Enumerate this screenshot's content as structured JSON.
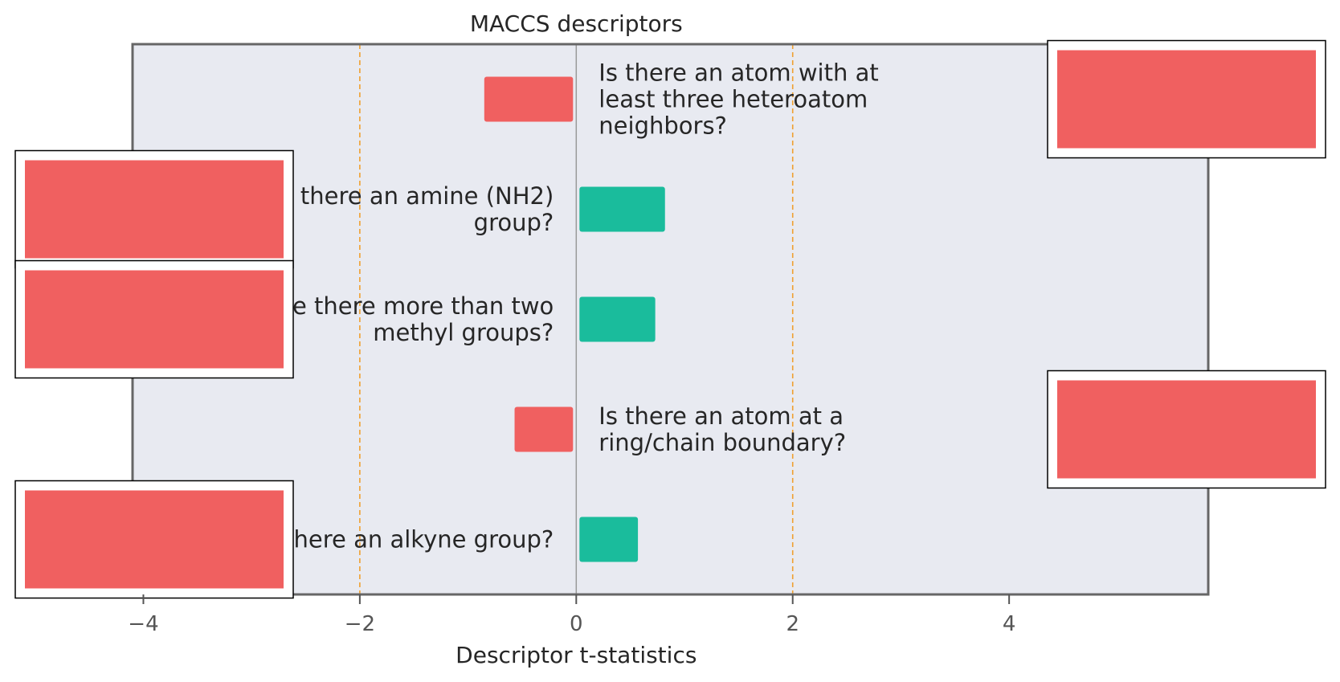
{
  "chart_data": {
    "type": "bar",
    "orientation": "horizontal",
    "title": "MACCS descriptors",
    "xlabel": "Descriptor t-statistics",
    "ylabel": "",
    "xlim": [
      -4.1,
      5.84
    ],
    "xticks": [
      -4,
      -2,
      0,
      2,
      4
    ],
    "xtick_labels": [
      "−4",
      "−2",
      "0",
      "2",
      "4"
    ],
    "threshold_lines": [
      -2,
      2
    ],
    "grid": false,
    "colors": {
      "positive": "#1abc9c",
      "negative": "#f06060",
      "threshold": "#f0a030",
      "zero_line": "#999999",
      "plot_bg": "#e8eaf1",
      "image_placeholder": "#f06060"
    },
    "bars": [
      {
        "label_lines": [
          "Is there an atom with at",
          "least three heteroatom",
          "neighbors?"
        ],
        "value": -0.85
      },
      {
        "label_lines": [
          "Is there an amine (NH2)",
          "group?"
        ],
        "value": 0.82
      },
      {
        "label_lines": [
          "Are there more than two",
          "methyl groups?"
        ],
        "value": 0.73
      },
      {
        "label_lines": [
          "Is there an atom at a",
          "ring/chain boundary?"
        ],
        "value": -0.57
      },
      {
        "label_lines": [
          "Is there an alkyne group?"
        ],
        "value": 0.57
      }
    ]
  }
}
